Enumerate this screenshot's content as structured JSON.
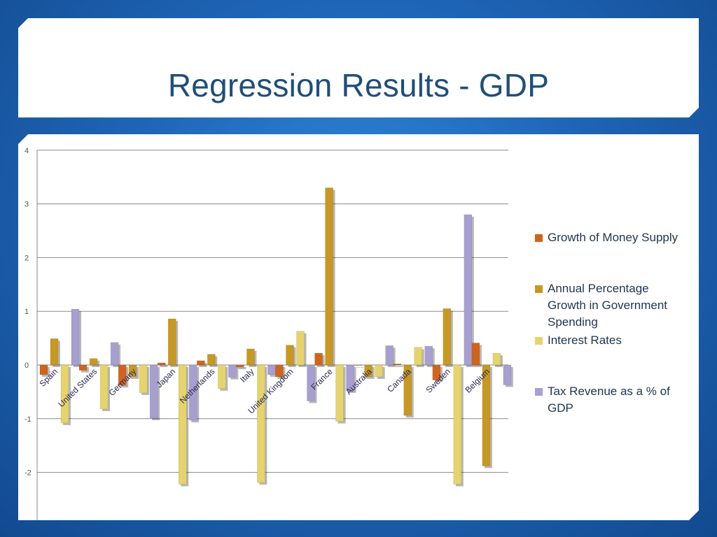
{
  "slide": {
    "title": "Regression Results - GDP"
  },
  "chart_data": {
    "type": "bar",
    "title": "",
    "xlabel": "",
    "ylabel": "",
    "ylim": [
      -2.5,
      4
    ],
    "yticks": [
      4,
      3,
      2,
      1,
      0,
      -1,
      -2
    ],
    "grid": true,
    "legend_position": "right",
    "categories": [
      "Spain",
      "United States",
      "Germany",
      "Japan",
      "Netherlands",
      "Italy",
      "United Kingdom",
      "France",
      "Australia",
      "Canada",
      "Sweden",
      "Belgium"
    ],
    "series": [
      {
        "name": "Growth of Money Supply",
        "color": "#d3631b",
        "values": [
          -0.18,
          -0.1,
          -0.38,
          0.04,
          0.08,
          -0.04,
          -0.22,
          0.22,
          0.0,
          0.02,
          -0.28,
          0.41
        ]
      },
      {
        "name": "Annual Percentage Growth in Government Spending",
        "color": "#c8981f",
        "values": [
          0.49,
          0.12,
          -0.22,
          0.86,
          0.2,
          0.3,
          0.37,
          3.3,
          -0.22,
          -0.94,
          1.05,
          -1.88
        ]
      },
      {
        "name": "Interest Rates",
        "color": "#e6d46a",
        "values": [
          -1.08,
          -0.82,
          -0.52,
          -2.22,
          -0.44,
          -2.19,
          0.63,
          -1.05,
          -0.22,
          0.33,
          -2.22,
          0.22
        ]
      },
      {
        "name": "Tax Revenue as a % of GDP",
        "color": "#a79fd1",
        "values": [
          1.04,
          0.42,
          -0.99,
          -1.03,
          -0.23,
          -0.18,
          -0.67,
          -0.48,
          0.36,
          0.35,
          2.8,
          -0.37
        ]
      }
    ],
    "legend": [
      {
        "label": "Growth of Money Supply",
        "color": "#d3631b"
      },
      {
        "label": "Annual Percentage Growth in Government Spending",
        "color": "#c8981f"
      },
      {
        "label": "Interest Rates",
        "color": "#e6d46a"
      },
      {
        "label": "Tax Revenue as a % of GDP",
        "color": "#a79fd1"
      }
    ]
  }
}
